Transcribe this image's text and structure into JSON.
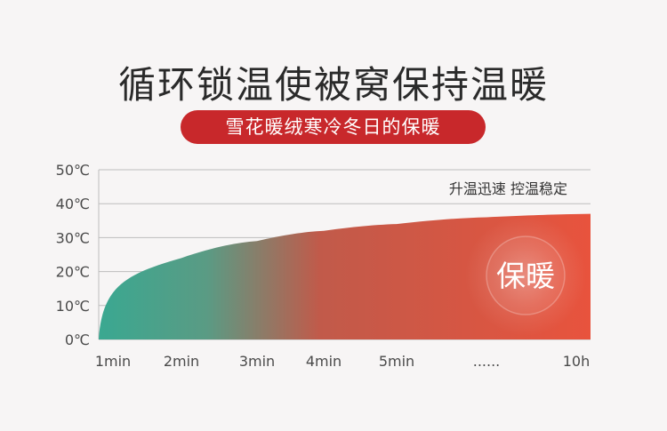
{
  "header": {
    "title": "循环锁温使被窝保持温暖",
    "subtitle": "雪花暖绒寒冷冬日的保暖"
  },
  "colors": {
    "accent_red": "#c8282b",
    "curve_start": "#3aa891",
    "curve_end": "#e8533d"
  },
  "chart_data": {
    "type": "area",
    "title": "",
    "xlabel": "",
    "ylabel": "",
    "categories": [
      "1min",
      "2min",
      "3min",
      "4min",
      "5min",
      "......",
      "10h"
    ],
    "y_ticks": [
      "0℃",
      "10℃",
      "20℃",
      "30℃",
      "40℃",
      "50℃"
    ],
    "ylim": [
      0,
      50
    ],
    "grid": true,
    "series": [
      {
        "values": [
          0,
          24,
          29,
          32,
          34,
          36,
          37
        ]
      }
    ],
    "annotations": {
      "top_right": "升温迅速 控温稳定",
      "badge": "保暖"
    }
  }
}
